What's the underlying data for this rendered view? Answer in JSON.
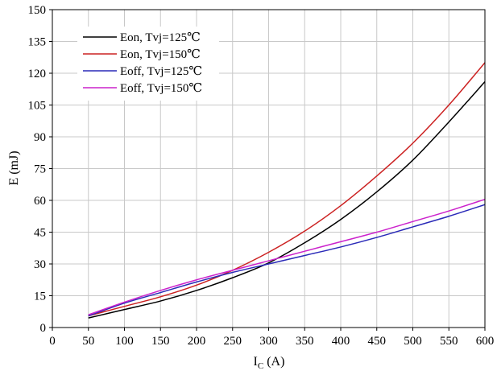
{
  "chart_data": {
    "type": "line",
    "title": "",
    "xlabel_main": "I",
    "xlabel_sub": "C",
    "xlabel_unit": "(A)",
    "ylabel": "E (mJ)",
    "xlim": [
      0,
      600
    ],
    "ylim": [
      0,
      150
    ],
    "xticks": [
      0,
      50,
      100,
      150,
      200,
      250,
      300,
      350,
      400,
      450,
      500,
      550,
      600
    ],
    "yticks": [
      0,
      15,
      30,
      45,
      60,
      75,
      90,
      105,
      120,
      135,
      150
    ],
    "grid": true,
    "legend_position": "top-left",
    "series": [
      {
        "name": "Eon, Tvj=125℃",
        "color": "#000000",
        "x": [
          50,
          100,
          150,
          200,
          250,
          300,
          350,
          400,
          450,
          500,
          550,
          600
        ],
        "y": [
          4.5,
          8.5,
          12.5,
          17.5,
          23.5,
          30.5,
          40.0,
          51.0,
          64.0,
          79.0,
          97.0,
          116.0
        ]
      },
      {
        "name": "Eon, Tvj=150℃",
        "color": "#cc2222",
        "x": [
          50,
          100,
          150,
          200,
          250,
          300,
          350,
          400,
          450,
          500,
          550,
          600
        ],
        "y": [
          5.5,
          10.0,
          14.5,
          20.0,
          27.0,
          35.5,
          45.5,
          57.5,
          71.5,
          87.0,
          105.0,
          125.0
        ]
      },
      {
        "name": "Eoff, Tvj=125℃",
        "color": "#2a2ab8",
        "x": [
          50,
          100,
          150,
          200,
          250,
          300,
          350,
          400,
          450,
          500,
          550,
          600
        ],
        "y": [
          5.5,
          11.5,
          16.5,
          21.5,
          26.0,
          30.0,
          34.0,
          38.0,
          42.5,
          47.5,
          52.5,
          58.0
        ]
      },
      {
        "name": "Eoff, Tvj=150℃",
        "color": "#cc22cc",
        "x": [
          50,
          100,
          150,
          200,
          250,
          300,
          350,
          400,
          450,
          500,
          550,
          600
        ],
        "y": [
          6.0,
          12.0,
          17.5,
          22.5,
          27.0,
          31.5,
          36.0,
          40.5,
          45.0,
          50.0,
          55.0,
          60.5
        ]
      }
    ]
  }
}
